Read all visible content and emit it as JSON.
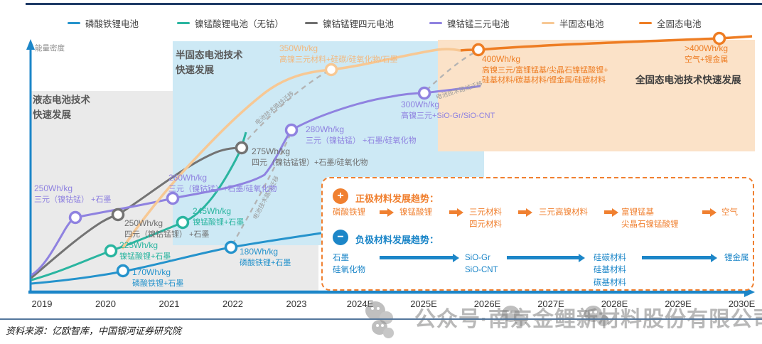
{
  "page": {
    "source_note": "资料来源：亿欧智库，中国银河证券研究院",
    "watermark": "公众号·南京金鲤新材料股份有限公司"
  },
  "chart_data": {
    "type": "line",
    "ylabel": "能量密度",
    "x_categories": [
      "2019",
      "2020",
      "2021",
      "2022",
      "2023",
      "2024E",
      "2025E",
      "2026E",
      "2027E",
      "2028E",
      "2029E",
      "2030E"
    ],
    "legend_position": "top",
    "grid": false,
    "migration_label": "电池技术路线迁移",
    "regions": [
      {
        "label": "液态电池技术\n快速发展"
      },
      {
        "label": "半固态电池技术\n快速发展"
      },
      {
        "label": "全固态电池技术快速发展"
      }
    ],
    "series": [
      {
        "name": "磷酸铁锂电池",
        "color": "#2593cc",
        "points": [
          {
            "x": "2020",
            "value_wh_kg": 170,
            "label": "170Wh/kg",
            "materials": [
              "磷酸铁锂+石墨"
            ]
          },
          {
            "x": "2022",
            "value_wh_kg": 180,
            "label": "180Wh/kg",
            "materials": [
              "磷酸铁锂+石墨"
            ]
          }
        ]
      },
      {
        "name": "镍锰酸锂电池（无钴）",
        "color": "#2ab5a0",
        "points": [
          {
            "x": "2020",
            "value_wh_kg": 225,
            "label": "225Wh/kg",
            "materials": [
              "镍锰酸锂+石墨"
            ]
          },
          {
            "x": "2021",
            "value_wh_kg": 245,
            "label": "245Wh/kg",
            "materials": [
              "镍锰酸锂+石墨"
            ]
          }
        ]
      },
      {
        "name": "镍钴锰锂四元电池",
        "color": "#6f6f6f",
        "points": [
          {
            "x": "2020",
            "value_wh_kg": 250,
            "label": "250Wh/kg",
            "materials": [
              "四元（镍钴锰锂） +石墨"
            ]
          },
          {
            "x": "2022",
            "value_wh_kg": 275,
            "label": "275Wh/kg",
            "materials": [
              "四元（镍钴锰锂）+石墨/硅氧化物"
            ]
          }
        ]
      },
      {
        "name": "镍钴锰三元电池",
        "color": "#8f82e0",
        "points": [
          {
            "x": "2019",
            "value_wh_kg": 250,
            "label": "250Wh/kg",
            "materials": [
              "三元（镍钴锰） +石墨"
            ]
          },
          {
            "x": "2021",
            "value_wh_kg": 260,
            "label": "260Wh/kg",
            "materials": [
              "三元（镍钴锰）+石墨/硅氧化物"
            ]
          },
          {
            "x": "2023",
            "value_wh_kg": 280,
            "label": "280Wh/kg",
            "materials": [
              "三元（镍钴锰） +石墨/硅氧化物"
            ]
          },
          {
            "x": "2025E",
            "value_wh_kg": 300,
            "label": "300Wh/kg",
            "materials": [
              "高镍三元+SiO-Gr/SiO-CNT"
            ]
          }
        ]
      },
      {
        "name": "半固态电池",
        "color": "#f7c894",
        "points": [
          {
            "x": "2024E",
            "value_wh_kg": 350,
            "label": "350Wh/kg",
            "materials": [
              "高镍三元材料+硅碳/硅氧化物/石墨"
            ]
          }
        ]
      },
      {
        "name": "全固态电池",
        "color": "#ee7d23",
        "points": [
          {
            "x": "2026E",
            "value_wh_kg": 400,
            "label": "400Wh/kg",
            "materials": [
              "高镍三元/富锂锰基/尖晶石镍锰酸锂+",
              "硅基材料/碳基材料/锂金属/硅碳材料"
            ]
          },
          {
            "x": "2030E",
            "value_wh_kg": 400,
            "label": ">400Wh/kg",
            "materials": [
              "空气+锂金属"
            ]
          }
        ]
      }
    ],
    "trends": {
      "cathode": {
        "title": "正极材料发展趋势：",
        "icon": "plus-icon",
        "color": "#f08030",
        "items": [
          "磷酸铁锂",
          "镍锰酸锂",
          "三元材料\n四元材料",
          "三元高镍材料",
          "富锂锰基\n尖晶石镍锰酸锂",
          "空气"
        ]
      },
      "anode": {
        "title": "负极材料发展趋势：",
        "icon": "minus-icon",
        "color": "#1c86c8",
        "items": [
          "石墨\n硅氧化物",
          "SiO-Gr\nSiO-CNT",
          "硅碳材料\n硅基材料\n碳基材料",
          "锂金属"
        ]
      }
    }
  }
}
